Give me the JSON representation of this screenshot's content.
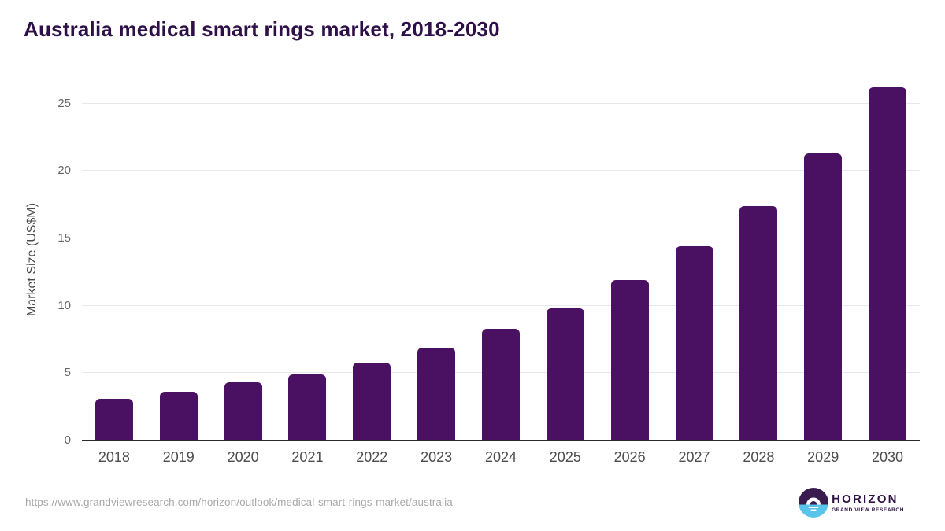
{
  "title": "Australia medical smart rings market, 2018-2030",
  "source_url": "https://www.grandviewresearch.com/horizon/outlook/medical-smart-rings-market/australia",
  "logo": {
    "name": "HORIZON",
    "subtitle": "GRAND VIEW RESEARCH"
  },
  "colors": {
    "bar": "#4a1162",
    "title": "#2e0f47",
    "grid": "#e8e8e8",
    "axis_line": "#2b2b2b",
    "tick_label": "#666666",
    "year_label": "#4d4d4d",
    "url_text": "#a9a9a9",
    "logo_purple": "#3a1b50",
    "logo_blue": "#58c4ea"
  },
  "chart_data": {
    "type": "bar",
    "title": "Australia medical smart rings market, 2018-2030",
    "categories": [
      "2018",
      "2019",
      "2020",
      "2021",
      "2022",
      "2023",
      "2024",
      "2025",
      "2026",
      "2027",
      "2028",
      "2029",
      "2030"
    ],
    "values": [
      3.1,
      3.6,
      4.3,
      4.9,
      5.8,
      6.9,
      8.3,
      9.8,
      11.9,
      14.4,
      17.4,
      21.3,
      26.2
    ],
    "xlabel": "",
    "ylabel": "Market Size (US$M)",
    "ylim": [
      0,
      25
    ],
    "yticks": [
      0,
      5,
      10,
      15,
      20,
      25
    ],
    "grid": true,
    "legend": "none",
    "bar_color": "#4a1162"
  }
}
